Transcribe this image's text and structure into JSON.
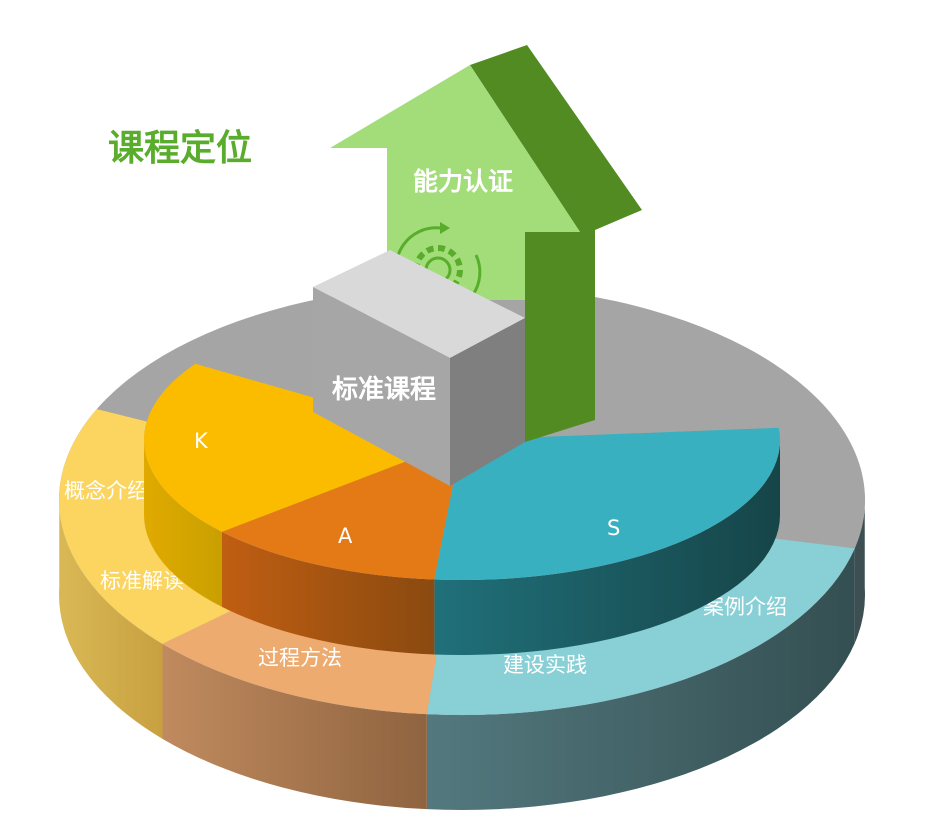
{
  "title": "课程定位",
  "arrow_label": "能力认证",
  "cube_label": "标准课程",
  "upper_ring": {
    "k_label": "K",
    "a_label": "A",
    "s_label": "S"
  },
  "lower_ring": {
    "labels": [
      "概念介绍",
      "标准解读",
      "过程方法",
      "建设实践",
      "案例介绍"
    ]
  },
  "icons": {
    "arrow_center": "gear-refresh-icon"
  },
  "colors": {
    "title": "#5aad2c",
    "arrow_light": "#a2dd7a",
    "arrow_dark": "#528b22",
    "yellow": "#fbbc00",
    "orange": "#e47a16",
    "teal": "#38b0c0",
    "gray": "#a5a5a5",
    "light_yellow": "#fbd55f",
    "light_orange": "#eeab70",
    "light_teal": "#88cfd6"
  }
}
